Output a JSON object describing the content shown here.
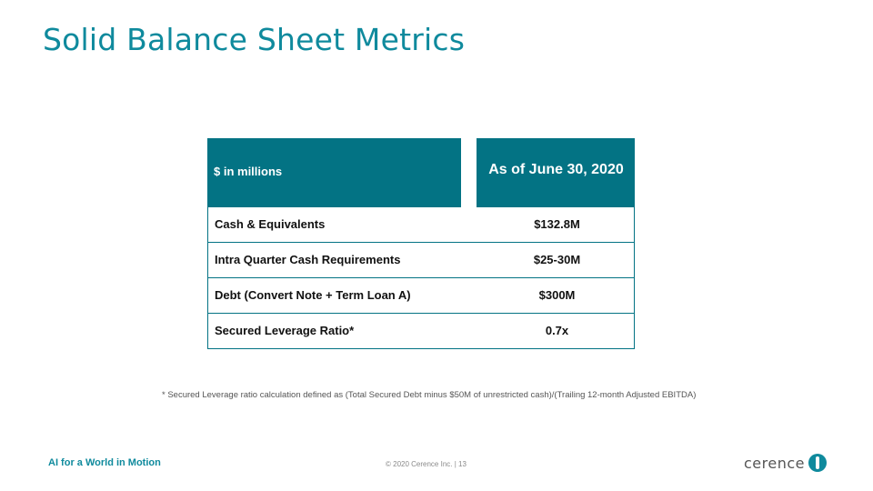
{
  "slide": {
    "title": "Solid Balance Sheet Metrics",
    "table": {
      "header_left": "$ in millions",
      "header_right": "As of June 30, 2020",
      "rows": [
        {
          "label": "Cash & Equivalents",
          "value": "$132.8M"
        },
        {
          "label": "Intra Quarter Cash Requirements",
          "value": "$25-30M"
        },
        {
          "label": "Debt (Convert Note + Term Loan A)",
          "value": "$300M"
        },
        {
          "label": "Secured Leverage Ratio*",
          "value": "0.7x"
        }
      ]
    },
    "footnote": "* Secured Leverage ratio calculation defined as (Total Secured Debt minus $50M of unrestricted cash)/(Trailing 12-month Adjusted EBITDA)",
    "tagline": "AI for a World in Motion",
    "page_footer": "© 2020 Cerence Inc.  |  13",
    "logo_text": "cerence"
  },
  "colors": {
    "accent": "#0f8a9d",
    "header_fill": "#037384"
  }
}
